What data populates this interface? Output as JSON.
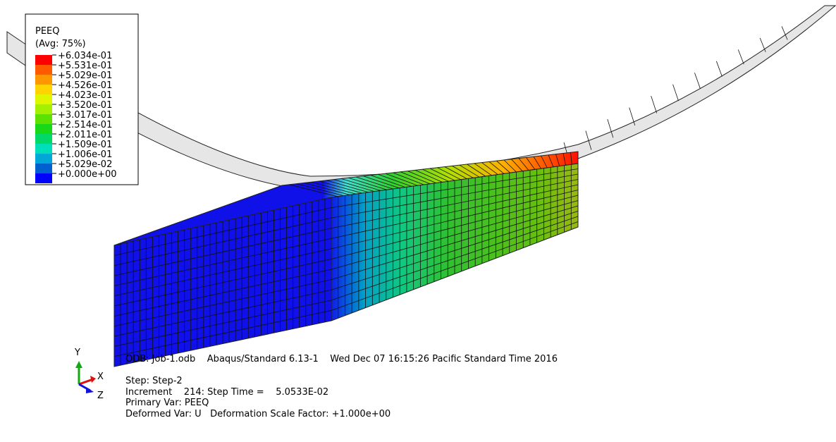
{
  "legend": {
    "title": "PEEQ",
    "subtitle": "(Avg: 75%)",
    "labels": [
      "+6.034e-01",
      "+5.531e-01",
      "+5.029e-01",
      "+4.526e-01",
      "+4.023e-01",
      "+3.520e-01",
      "+3.017e-01",
      "+2.514e-01",
      "+2.011e-01",
      "+1.509e-01",
      "+1.006e-01",
      "+5.029e-02",
      "+0.000e+00"
    ],
    "colors": [
      "#ff0000",
      "#ff5a00",
      "#ff9800",
      "#ffd400",
      "#e0f500",
      "#a5f000",
      "#5ee000",
      "#18d818",
      "#00d868",
      "#00e0b8",
      "#00a8d8",
      "#0060d0",
      "#0000ff"
    ]
  },
  "triad": {
    "y": "Y",
    "x": "X",
    "z": "Z"
  },
  "info": {
    "odb": "ODB: Job-1.odb    Abaqus/Standard 6.13-1    Wed Dec 07 16:15:26 Pacific Standard Time 2016",
    "step": "Step: Step-2",
    "increment": "Increment    214: Step Time =    5.0533E-02",
    "primary": "Primary Var: PEEQ",
    "deformed": "Deformed Var: U   Deformation Scale Factor: +1.000e+00"
  }
}
